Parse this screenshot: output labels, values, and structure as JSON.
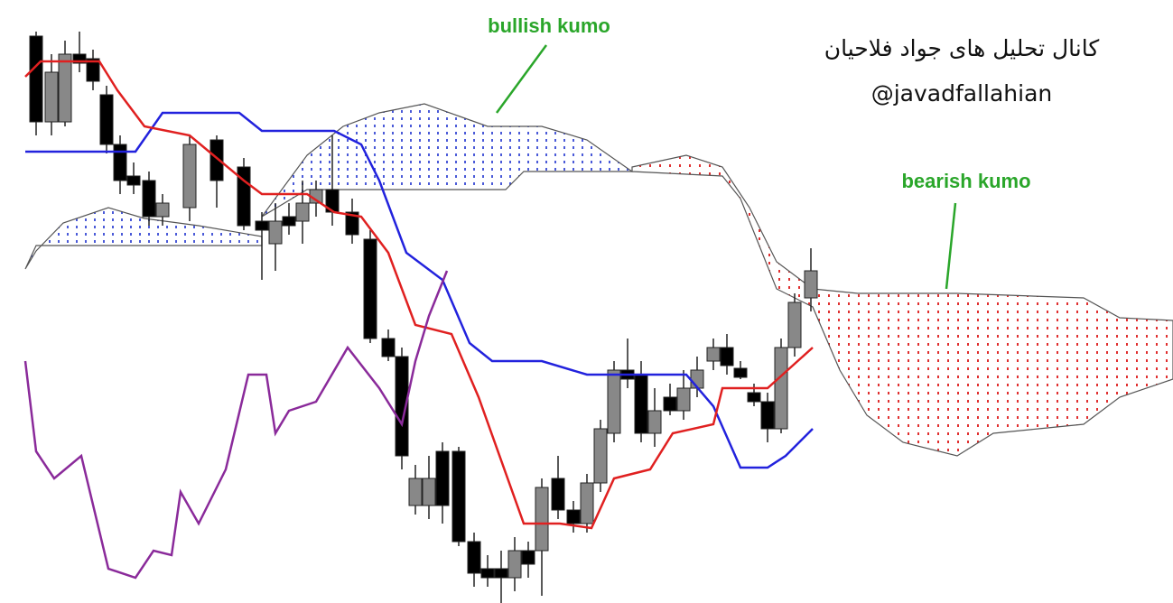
{
  "annotations": {
    "bullish": "bullish kumo",
    "bearish": "bearish kumo"
  },
  "watermark": {
    "channel": "کانال تحلیل های جواد فلاحیان",
    "handle": "@javadfallahian"
  }
}
